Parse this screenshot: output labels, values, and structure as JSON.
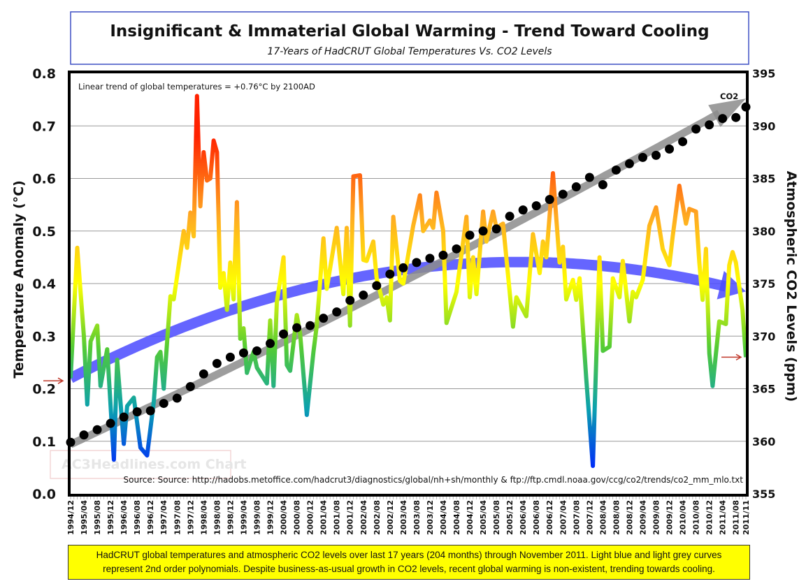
{
  "chart_data": {
    "type": "line",
    "title": "Insignificant & Immaterial Global Warming - Trend Toward Cooling",
    "subtitle": "17-Years of HadCRUT Global Temperatures Vs. CO2 Levels",
    "ylabel": "Temperature Anomaly (°C)",
    "y2label": "Atmospheric CO2 Levels (ppm)",
    "ylim": [
      0.0,
      0.8
    ],
    "y2lim": [
      355,
      395
    ],
    "y_ticks": [
      "0.0",
      "0.1",
      "0.2",
      "0.3",
      "0.4",
      "0.5",
      "0.6",
      "0.7",
      "0.8"
    ],
    "y2_ticks": [
      "355",
      "360",
      "365",
      "370",
      "375",
      "380",
      "385",
      "390",
      "395"
    ],
    "grid": true,
    "x_ticks": [
      "1994/12",
      "1995/04",
      "1995/08",
      "1995/12",
      "1996/04",
      "1996/08",
      "1996/12",
      "1997/04",
      "1997/08",
      "1997/12",
      "1998/04",
      "1998/08",
      "1998/12",
      "1999/04",
      "1999/08",
      "1999/12",
      "2000/04",
      "2000/08",
      "2000/12",
      "2001/04",
      "2001/08",
      "2001/12",
      "2002/04",
      "2002/08",
      "2002/12",
      "2003/04",
      "2003/08",
      "2003/12",
      "2004/04",
      "2004/08",
      "2004/12",
      "2005/04",
      "2005/08",
      "2005/12",
      "2006/04",
      "2006/08",
      "2006/12",
      "2007/04",
      "2007/08",
      "2007/12",
      "2008/04",
      "2008/08",
      "2008/12",
      "2009/04",
      "2009/08",
      "2009/12",
      "2010/04",
      "2010/08",
      "2010/12",
      "2011/04",
      "2011/08",
      "2011/11"
    ],
    "annotation_trend": "Linear trend of global temperatures = +0.76°C by 2100AD",
    "co2_label": "CO2",
    "source": "Source: Source: http://hadobs.metoffice.com/hadcrut3/diagnostics/global/nh+sh/monthly  &  ftp://ftp.cmdl.noaa.gov/ccg/co2/trends/co2_mm_mlo.txt",
    "watermark": "AC3Headlines.com Chart",
    "series": [
      {
        "axis": "left",
        "style": "rainbow-gradient line",
        "x": [
          "1994/12",
          "1995/02",
          "1995/04",
          "1995/05",
          "1995/06",
          "1995/08",
          "1995/09",
          "1995/11",
          "1996/01",
          "1996/02",
          "1996/04",
          "1996/05",
          "1996/07",
          "1996/09",
          "1996/11",
          "1997/01",
          "1997/02",
          "1997/03",
          "1997/04",
          "1997/06",
          "1997/07",
          "1997/10",
          "1997/11",
          "1997/12",
          "1998/01",
          "1998/02",
          "1998/03",
          "1998/04",
          "1998/05",
          "1998/06",
          "1998/07",
          "1998/08",
          "1998/09",
          "1998/10",
          "1998/11",
          "1998/12",
          "1999/01",
          "1999/02",
          "1999/03",
          "1999/04",
          "1999/05",
          "1999/07",
          "1999/08",
          "1999/11",
          "1999/12",
          "2000/01",
          "2000/02",
          "2000/04",
          "2000/05",
          "2000/06",
          "2000/08",
          "2000/09",
          "2000/11",
          "2001/01",
          "2001/02",
          "2001/04",
          "2001/05",
          "2001/08",
          "2001/10",
          "2001/11",
          "2001/12",
          "2002/01",
          "2002/03",
          "2002/04",
          "2002/05",
          "2002/07",
          "2002/08",
          "2002/10",
          "2002/11",
          "2002/12",
          "2003/01",
          "2003/03",
          "2003/04",
          "2003/07",
          "2003/09",
          "2003/10",
          "2003/12",
          "2004/01",
          "2004/02",
          "2004/04",
          "2004/05",
          "2004/08",
          "2004/11",
          "2004/12",
          "2005/01",
          "2005/02",
          "2005/04",
          "2005/05",
          "2005/07",
          "2005/08",
          "2005/10",
          "2006/01",
          "2006/02",
          "2006/05",
          "2006/07",
          "2006/09",
          "2006/10",
          "2006/11",
          "2007/01",
          "2007/03",
          "2007/04",
          "2007/05",
          "2007/07",
          "2007/08",
          "2007/09",
          "2007/11",
          "2008/01",
          "2008/03",
          "2008/04",
          "2008/06",
          "2008/07",
          "2008/09",
          "2008/10",
          "2008/12",
          "2009/01",
          "2009/02",
          "2009/04",
          "2009/06",
          "2009/08",
          "2009/10",
          "2009/12",
          "2010/01",
          "2010/03",
          "2010/05",
          "2010/06",
          "2010/08",
          "2010/09",
          "2010/10",
          "2010/11",
          "2010/12",
          "2011/01",
          "2011/03",
          "2011/05",
          "2011/06",
          "2011/07",
          "2011/08",
          "2011/10",
          "2011/11"
        ],
        "values": [
          0.22,
          0.468,
          0.3,
          0.17,
          0.29,
          0.32,
          0.205,
          0.275,
          0.065,
          0.255,
          0.095,
          0.167,
          0.183,
          0.088,
          0.073,
          0.175,
          0.26,
          0.27,
          0.2,
          0.376,
          0.37,
          0.5,
          0.468,
          0.535,
          0.49,
          0.757,
          0.547,
          0.65,
          0.596,
          0.6,
          0.672,
          0.65,
          0.392,
          0.42,
          0.35,
          0.44,
          0.37,
          0.555,
          0.295,
          0.315,
          0.23,
          0.27,
          0.24,
          0.21,
          0.33,
          0.205,
          0.364,
          0.45,
          0.245,
          0.234,
          0.34,
          0.305,
          0.15,
          0.27,
          0.32,
          0.486,
          0.39,
          0.506,
          0.38,
          0.506,
          0.32,
          0.604,
          0.606,
          0.445,
          0.443,
          0.48,
          0.41,
          0.36,
          0.374,
          0.33,
          0.527,
          0.405,
          0.4,
          0.51,
          0.568,
          0.5,
          0.52,
          0.506,
          0.573,
          0.5,
          0.325,
          0.384,
          0.527,
          0.374,
          0.45,
          0.38,
          0.537,
          0.48,
          0.537,
          0.506,
          0.514,
          0.318,
          0.374,
          0.338,
          0.494,
          0.42,
          0.48,
          0.45,
          0.61,
          0.44,
          0.47,
          0.37,
          0.407,
          0.369,
          0.41,
          0.22,
          0.053,
          0.45,
          0.272,
          0.28,
          0.41,
          0.374,
          0.443,
          0.328,
          0.384,
          0.374,
          0.407,
          0.51,
          0.545,
          0.466,
          0.435,
          0.49,
          0.586,
          0.514,
          0.542,
          0.537,
          0.44,
          0.369,
          0.466,
          0.267,
          0.205,
          0.328,
          0.323,
          0.435,
          0.46,
          0.44,
          0.35,
          0.26
        ]
      },
      {
        "axis": "right",
        "style": "black dots",
        "x": [
          "1994/12",
          "1995/04",
          "1995/08",
          "1995/12",
          "1996/04",
          "1996/08",
          "1996/12",
          "1997/04",
          "1997/08",
          "1997/12",
          "1998/04",
          "1998/08",
          "1998/12",
          "1999/04",
          "1999/08",
          "1999/12",
          "2000/04",
          "2000/08",
          "2000/12",
          "2001/04",
          "2001/08",
          "2001/12",
          "2002/04",
          "2002/08",
          "2002/12",
          "2003/04",
          "2003/08",
          "2003/12",
          "2004/04",
          "2004/08",
          "2004/12",
          "2005/04",
          "2005/08",
          "2005/12",
          "2006/04",
          "2006/08",
          "2006/12",
          "2007/04",
          "2007/08",
          "2007/12",
          "2008/04",
          "2008/08",
          "2008/12",
          "2009/04",
          "2009/08",
          "2009/12",
          "2010/04",
          "2010/08",
          "2010/12",
          "2011/04",
          "2011/08",
          "2011/11"
        ],
        "values": [
          359.9,
          360.6,
          361.1,
          361.7,
          362.3,
          362.8,
          362.9,
          363.6,
          364.1,
          365.2,
          366.4,
          367.4,
          368.0,
          368.4,
          368.6,
          369.3,
          370.2,
          370.8,
          371.0,
          371.7,
          372.3,
          373.4,
          373.9,
          374.8,
          375.9,
          376.5,
          377.0,
          377.4,
          377.7,
          378.3,
          379.6,
          380.0,
          380.2,
          381.4,
          382.0,
          382.4,
          383.0,
          383.5,
          384.2,
          385.1,
          384.4,
          385.8,
          386.4,
          387.0,
          387.2,
          387.8,
          388.5,
          389.7,
          390.1,
          390.7,
          390.8,
          391.8
        ]
      }
    ],
    "fits": [
      {
        "axis": "left",
        "color": "#4a4aff",
        "kind": "2nd order polynomial",
        "x": [
          "1994/12",
          "2005/06",
          "2011/11"
        ],
        "values": [
          0.22,
          0.44,
          0.385
        ]
      },
      {
        "axis": "right",
        "color": "#8c8c8c",
        "kind": "2nd order polynomial",
        "x": [
          "1994/12",
          "2003/04",
          "2011/11"
        ],
        "values": [
          359.7,
          375.2,
          392.6
        ]
      }
    ],
    "markers": [
      {
        "axis": "left",
        "color": "#c0392b",
        "at": "start",
        "value": 0.215
      },
      {
        "axis": "left",
        "color": "#c0392b",
        "at": "end",
        "value": 0.26
      }
    ]
  },
  "footer": {
    "line1": "HadCRUT global temperatures and atmospheric CO2 levels over last 17 years (204 months) through November 2011. Light blue and  light grey curves",
    "line2": "represent 2nd order polynomials. Despite business-as-usual growth in CO2 levels, recent global warming is non-existent, trending towards cooling."
  }
}
